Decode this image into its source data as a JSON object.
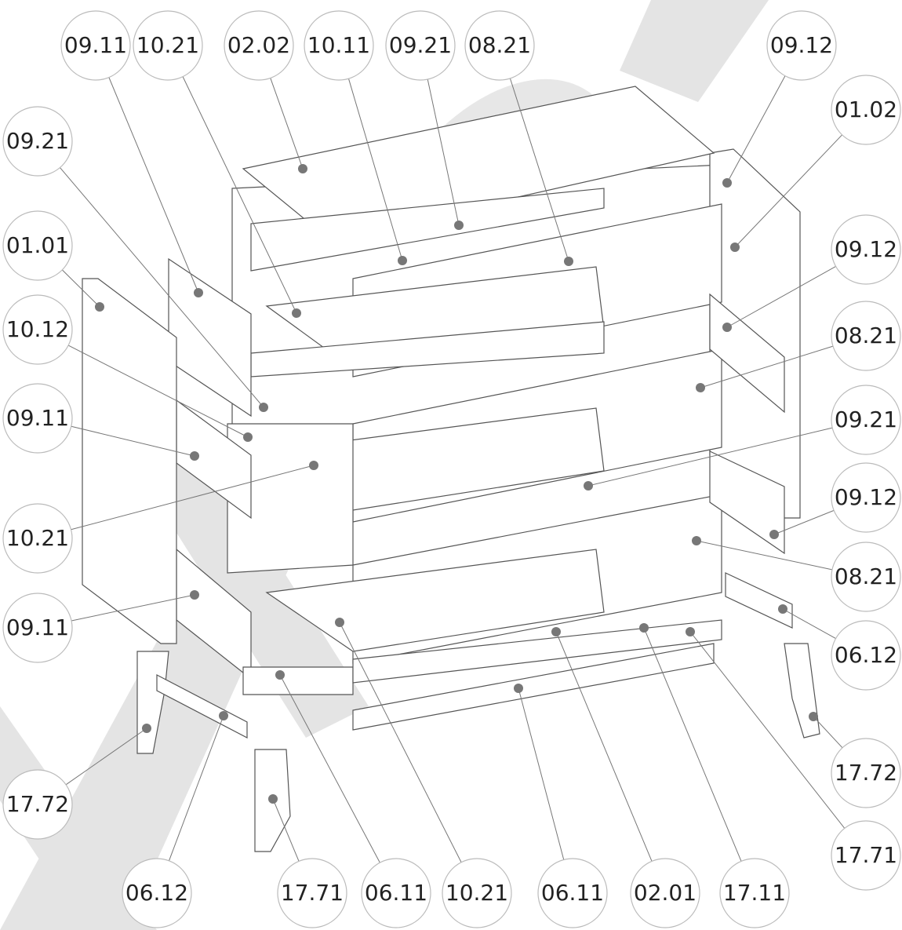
{
  "callouts": [
    {
      "label": "09.11"
    },
    {
      "label": "10.21"
    },
    {
      "label": "02.02"
    },
    {
      "label": "10.11"
    },
    {
      "label": "09.21"
    },
    {
      "label": "08.21"
    },
    {
      "label": "09.12"
    },
    {
      "label": "01.02"
    },
    {
      "label": "09.12"
    },
    {
      "label": "08.21"
    },
    {
      "label": "09.21"
    },
    {
      "label": "09.12"
    },
    {
      "label": "08.21"
    },
    {
      "label": "06.12"
    },
    {
      "label": "17.72"
    },
    {
      "label": "17.71"
    },
    {
      "label": "09.21"
    },
    {
      "label": "01.01"
    },
    {
      "label": "10.12"
    },
    {
      "label": "09.11"
    },
    {
      "label": "10.21"
    },
    {
      "label": "09.11"
    },
    {
      "label": "17.72"
    },
    {
      "label": "06.12"
    },
    {
      "label": "17.71"
    },
    {
      "label": "06.11"
    },
    {
      "label": "10.21"
    },
    {
      "label": "06.11"
    },
    {
      "label": "02.01"
    },
    {
      "label": "17.11"
    }
  ]
}
